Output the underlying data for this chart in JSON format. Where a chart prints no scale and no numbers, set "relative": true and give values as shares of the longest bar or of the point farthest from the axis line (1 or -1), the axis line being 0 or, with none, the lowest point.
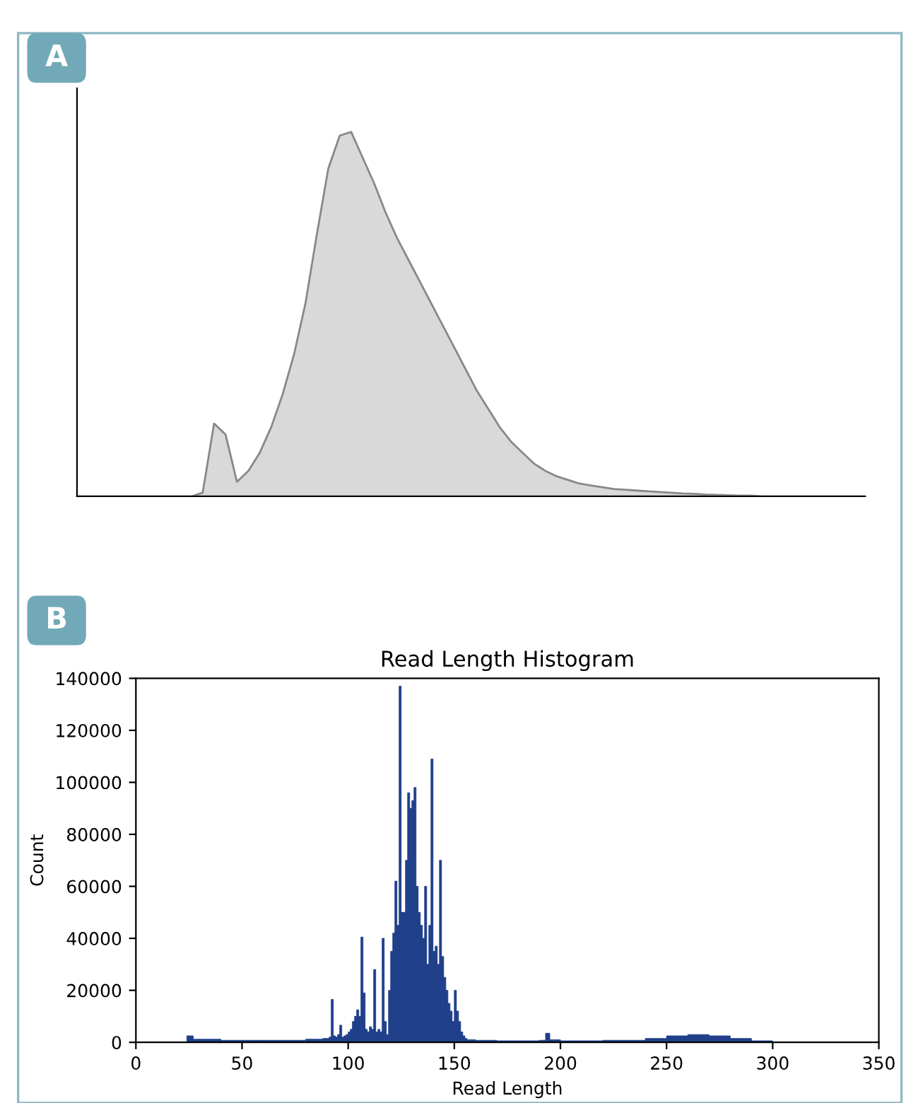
{
  "chart_data": [
    {
      "type": "area",
      "relative": true,
      "annotations": [
        "A"
      ],
      "color": "#d9d9d9",
      "categories": [
        null,
        null,
        null,
        null,
        null,
        null,
        null,
        null,
        null,
        null,
        null,
        null,
        null,
        null,
        null,
        null,
        null,
        null,
        null,
        null,
        null,
        null,
        null,
        null,
        null,
        null,
        null,
        null,
        null,
        null,
        null,
        null,
        null,
        null,
        null,
        null,
        null,
        null,
        null,
        null,
        null,
        null,
        null,
        null,
        null,
        null,
        null,
        null,
        null,
        null,
        null,
        null,
        null,
        null,
        null,
        null,
        null,
        null,
        null,
        null,
        null,
        null,
        null,
        null,
        null,
        null,
        null,
        null,
        null,
        null
      ],
      "values": [
        0,
        0,
        0,
        0,
        0,
        0,
        0,
        0,
        0,
        0,
        0,
        0.01,
        0.2,
        0.17,
        0.04,
        0.07,
        0.12,
        0.19,
        0.28,
        0.39,
        0.53,
        0.72,
        0.9,
        0.99,
        1,
        0.93,
        0.86,
        0.78,
        0.71,
        0.65,
        0.59,
        0.53,
        0.47,
        0.41,
        0.35,
        0.29,
        0.24,
        0.19,
        0.15,
        0.12,
        0.09,
        0.07,
        0.055,
        0.045,
        0.035,
        0.03,
        0.025,
        0.02,
        0.018,
        0.016,
        0.014,
        0.012,
        0.01,
        0.008,
        0.007,
        0.005,
        0.004,
        0.003,
        0.002,
        0.002,
        0,
        0,
        0,
        0,
        0,
        0,
        0,
        0,
        0,
        0
      ]
    },
    {
      "type": "histogram",
      "annotations": [
        "B"
      ],
      "title": "Read Length Histogram",
      "xlabel": "Read Length",
      "ylabel": "Count",
      "color": "#1f3f8a",
      "bins": [
        24,
        27,
        40,
        60,
        80,
        88,
        90,
        91,
        92,
        93,
        94,
        95,
        96,
        97,
        98,
        99,
        100,
        101,
        102,
        103,
        104,
        105,
        106,
        107,
        108,
        109,
        110,
        111,
        112,
        113,
        114,
        115,
        116,
        117,
        118,
        119,
        120,
        121,
        122,
        123,
        124,
        125,
        126,
        127,
        128,
        129,
        130,
        131,
        132,
        133,
        134,
        135,
        136,
        137,
        138,
        139,
        140,
        141,
        142,
        143,
        144,
        145,
        146,
        147,
        148,
        149,
        150,
        151,
        152,
        153,
        154,
        155,
        156,
        157,
        158,
        159,
        160,
        170,
        190,
        193,
        195,
        200,
        220,
        240,
        250,
        260,
        270,
        280,
        290,
        300
      ],
      "values": [
        2500,
        1200,
        800,
        800,
        1200,
        1500,
        1500,
        2000,
        16500,
        2500,
        2000,
        3000,
        6600,
        2000,
        2500,
        3000,
        4000,
        5000,
        8000,
        10000,
        12500,
        10000,
        40500,
        19000,
        5000,
        4000,
        6000,
        5000,
        28000,
        4000,
        5000,
        4000,
        40000,
        8000,
        3000,
        20000,
        35000,
        42000,
        62000,
        45000,
        137000,
        50000,
        50000,
        70000,
        96000,
        90000,
        93000,
        98000,
        60000,
        50000,
        45000,
        40000,
        60000,
        30000,
        45000,
        109000,
        35000,
        37000,
        30000,
        70000,
        33000,
        25000,
        20000,
        15000,
        12000,
        8000,
        20000,
        12000,
        8000,
        4000,
        2500,
        1500,
        1000,
        1000,
        1000,
        1000,
        800,
        600,
        800,
        3500,
        1000,
        600,
        800,
        1500,
        2500,
        3000,
        2500,
        1500,
        600
      ],
      "xlim": [
        0,
        350
      ],
      "xticks": [
        0,
        50,
        100,
        150,
        200,
        250,
        300,
        350
      ],
      "ylim": [
        0,
        140000
      ],
      "yticks": [
        0,
        20000,
        40000,
        60000,
        80000,
        100000,
        120000,
        140000
      ]
    }
  ]
}
